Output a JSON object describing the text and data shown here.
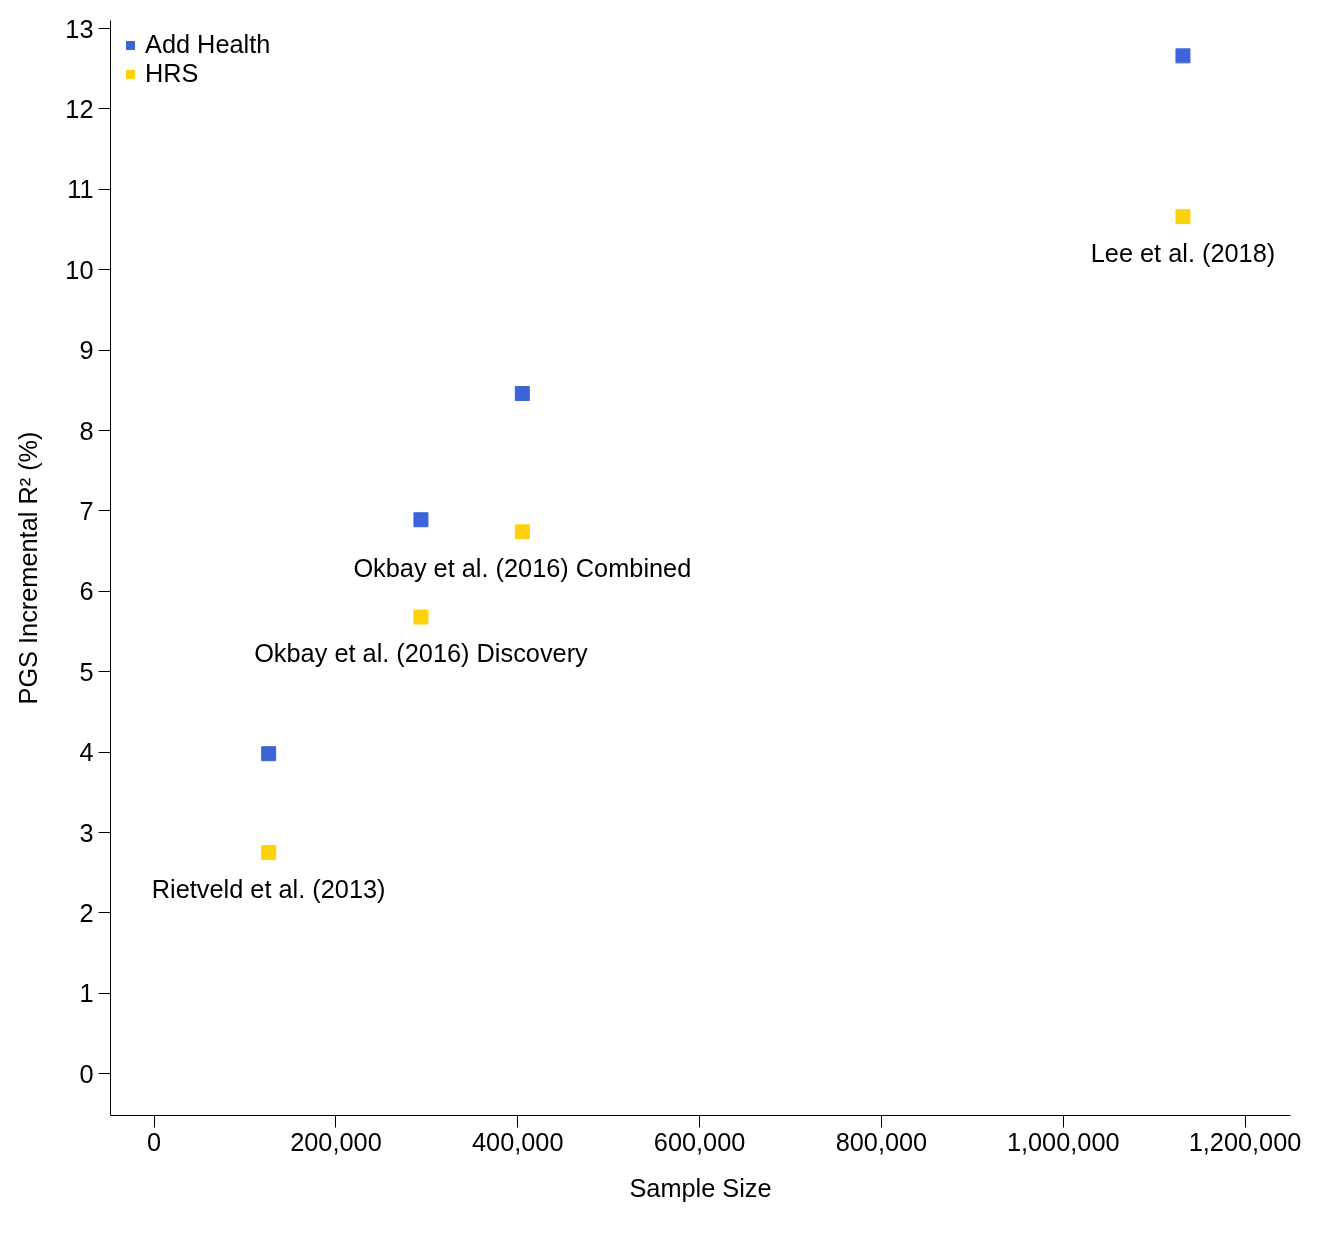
{
  "chart_data": {
    "type": "scatter",
    "xlabel": "Sample Size",
    "ylabel": "PGS Incremental R² (%)",
    "x": [
      126000,
      293500,
      405000,
      1131700
    ],
    "series": [
      {
        "name": "Add Health",
        "color": "#3d63d8",
        "values": [
          3.98,
          6.89,
          8.46,
          12.66
        ]
      },
      {
        "name": "HRS",
        "color": "#fdd20a",
        "values": [
          2.75,
          5.68,
          6.74,
          10.66
        ]
      }
    ],
    "xlim": [
      -48000,
      1250000
    ],
    "ylim": [
      -0.52,
      13.1
    ],
    "xticks": [
      0,
      {
        "value": 200000,
        "label": "200,000"
      },
      {
        "value": 400000,
        "label": "400,000"
      },
      {
        "value": 600000,
        "label": "600,000"
      },
      {
        "value": 800000,
        "label": "800,000"
      },
      {
        "value": 1000000,
        "label": "1,000,000"
      },
      {
        "value": 1200000,
        "label": "1,200,000"
      }
    ],
    "yticks": [
      0,
      1,
      2,
      3,
      4,
      5,
      6,
      7,
      8,
      9,
      10,
      11,
      12,
      13
    ],
    "marker": "square",
    "grid": false,
    "legend": "top left",
    "annotations": [
      {
        "text": "Rietveld et al. (2013)",
        "x": 126000,
        "y": 2.75
      },
      {
        "text": "Okbay et al. (2016) Discovery",
        "x": 293500,
        "y": 5.68
      },
      {
        "text": "Okbay et al. (2016) Combined",
        "x": 405000,
        "y": 6.74
      },
      {
        "text": "Lee et al. (2018)",
        "x": 1131700,
        "y": 10.66
      }
    ]
  }
}
